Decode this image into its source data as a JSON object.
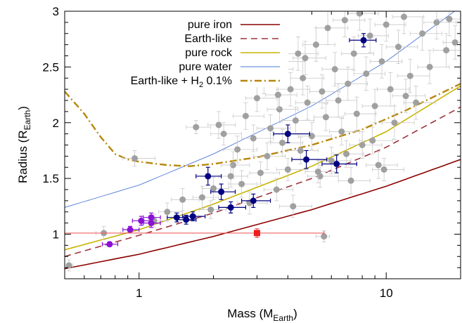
{
  "chart_data": {
    "type": "scatter",
    "xscale": "log",
    "xlim": [
      0.5,
      20
    ],
    "ylim": [
      0.6,
      3.0
    ],
    "xlabel": "Mass (M",
    "xlabel_sub": "Earth",
    "xlabel_close": ")",
    "ylabel": "Radius (R",
    "ylabel_sub": "Earth",
    "ylabel_close": ")",
    "xticks": [
      {
        "value": 1,
        "label": "1"
      },
      {
        "value": 10,
        "label": "10"
      }
    ],
    "yticks": [
      {
        "value": 1,
        "label": "1"
      },
      {
        "value": 1.5,
        "label": "1.5"
      },
      {
        "value": 2,
        "label": "2"
      },
      {
        "value": 2.5,
        "label": "2.5"
      },
      {
        "value": 3,
        "label": "3"
      }
    ],
    "legend_position": "top-left",
    "models": [
      {
        "name": "pure iron",
        "color": "#8b0000",
        "dash": "solid",
        "points": [
          [
            0.5,
            0.69
          ],
          [
            1,
            0.82
          ],
          [
            2,
            0.98
          ],
          [
            5,
            1.22
          ],
          [
            10,
            1.43
          ],
          [
            20,
            1.67
          ]
        ]
      },
      {
        "name": "Earth-like",
        "color": "#a0303a",
        "dash": "dash",
        "points": [
          [
            0.5,
            0.8
          ],
          [
            1,
            0.99
          ],
          [
            2,
            1.19
          ],
          [
            5,
            1.5
          ],
          [
            10,
            1.78
          ],
          [
            20,
            2.14
          ]
        ]
      },
      {
        "name": "pure rock",
        "color": "#c8b400",
        "dash": "solid",
        "points": [
          [
            0.5,
            0.86
          ],
          [
            1,
            1.04
          ],
          [
            2,
            1.27
          ],
          [
            5,
            1.61
          ],
          [
            10,
            1.92
          ],
          [
            20,
            2.33
          ]
        ]
      },
      {
        "name": "pure water",
        "color": "#4a78d8",
        "dash": "solid",
        "points": [
          [
            0.5,
            1.24
          ],
          [
            1,
            1.44
          ],
          [
            2,
            1.72
          ],
          [
            5,
            2.15
          ],
          [
            10,
            2.55
          ],
          [
            20,
            3.04
          ]
        ]
      },
      {
        "name_prefix": "Earth-like + H",
        "name_sub": "2",
        "name_suffix": " 0.1%",
        "color": "#b8860b",
        "dash": "dashdot",
        "points": [
          [
            0.5,
            2.28
          ],
          [
            0.6,
            2.08
          ],
          [
            0.7,
            1.87
          ],
          [
            0.8,
            1.72
          ],
          [
            0.9,
            1.67
          ],
          [
            1.0,
            1.65
          ],
          [
            1.3,
            1.62
          ],
          [
            1.6,
            1.61
          ],
          [
            2.0,
            1.63
          ],
          [
            3.0,
            1.69
          ],
          [
            5.0,
            1.8
          ],
          [
            8.0,
            1.94
          ],
          [
            12,
            2.11
          ],
          [
            20,
            2.35
          ]
        ]
      }
    ],
    "series": [
      {
        "name": "",
        "color": "#a0a0a0",
        "errcolor": "#c8c8c8",
        "points": [
          [
            0.52,
            0.72,
            0.02,
            0.02,
            0.05
          ],
          [
            0.72,
            1.01,
            0.05,
            0.12,
            0.06
          ],
          [
            0.96,
            1.68,
            0.1,
            0.2,
            0.07
          ],
          [
            1.15,
            1.12,
            0.1,
            0.15,
            0.06
          ],
          [
            1.3,
            1.2,
            0.1,
            0.2,
            0.08
          ],
          [
            1.5,
            1.31,
            0.15,
            0.25,
            0.1
          ],
          [
            1.7,
            1.96,
            0.15,
            0.25,
            0.06
          ],
          [
            1.8,
            1.33,
            0.15,
            0.3,
            0.1
          ],
          [
            2.0,
            1.41,
            0.2,
            0.3,
            0.1
          ],
          [
            2.1,
            1.98,
            0.2,
            0.35,
            0.12
          ],
          [
            2.2,
            1.9,
            0.25,
            0.4,
            0.1
          ],
          [
            2.4,
            1.62,
            0.25,
            0.4,
            0.12
          ],
          [
            2.5,
            1.76,
            0.3,
            0.5,
            0.12
          ],
          [
            2.6,
            1.45,
            0.3,
            0.4,
            0.12
          ],
          [
            2.7,
            2.06,
            0.3,
            0.5,
            0.12
          ],
          [
            2.8,
            1.28,
            0.3,
            0.5,
            0.1
          ],
          [
            2.9,
            1.86,
            0.3,
            0.6,
            0.12
          ],
          [
            3.0,
            2.22,
            0.3,
            0.6,
            0.12
          ],
          [
            3.1,
            1.55,
            0.3,
            0.6,
            0.1
          ],
          [
            3.2,
            2.38,
            0.4,
            0.6,
            0.12
          ],
          [
            3.3,
            1.7,
            0.4,
            0.6,
            0.12
          ],
          [
            3.4,
            1.95,
            0.4,
            0.7,
            0.12
          ],
          [
            3.5,
            2.48,
            0.4,
            0.7,
            0.12
          ],
          [
            3.6,
            1.4,
            0.4,
            0.6,
            0.1
          ],
          [
            3.7,
            2.12,
            0.4,
            0.7,
            0.12
          ],
          [
            3.8,
            1.82,
            0.4,
            0.8,
            0.12
          ],
          [
            3.9,
            2.55,
            0.5,
            0.8,
            0.15
          ],
          [
            4.0,
            1.58,
            0.4,
            0.8,
            0.1
          ],
          [
            4.1,
            2.3,
            0.5,
            0.8,
            0.15
          ],
          [
            4.2,
            1.25,
            0.5,
            0.8,
            0.1
          ],
          [
            4.3,
            2.02,
            0.5,
            0.8,
            0.12
          ],
          [
            4.4,
            2.62,
            0.5,
            0.9,
            0.15
          ],
          [
            4.5,
            1.75,
            0.5,
            0.8,
            0.12
          ],
          [
            4.6,
            2.4,
            0.5,
            1.0,
            0.15
          ],
          [
            4.8,
            2.18,
            0.5,
            1.0,
            0.15
          ],
          [
            5.0,
            1.88,
            0.6,
            1.0,
            0.12
          ],
          [
            5.2,
            2.7,
            0.6,
            1.0,
            0.15
          ],
          [
            5.4,
            1.52,
            0.6,
            1.0,
            0.1
          ],
          [
            5.5,
            2.28,
            0.6,
            1.0,
            0.15
          ],
          [
            5.6,
            0.98,
            0.4,
            0.3,
            0.05
          ],
          [
            5.7,
            2.05,
            0.6,
            1.0,
            0.12
          ],
          [
            5.8,
            2.85,
            0.6,
            1.2,
            0.15
          ],
          [
            6.0,
            1.66,
            0.7,
            1.2,
            0.12
          ],
          [
            6.2,
            2.48,
            0.7,
            1.2,
            0.15
          ],
          [
            6.4,
            2.2,
            0.7,
            1.2,
            0.15
          ],
          [
            6.6,
            1.92,
            0.7,
            1.2,
            0.12
          ],
          [
            6.8,
            2.92,
            0.7,
            1.4,
            0.15
          ],
          [
            7.0,
            2.35,
            0.8,
            1.4,
            0.15
          ],
          [
            7.2,
            1.48,
            0.8,
            1.4,
            0.12
          ],
          [
            7.4,
            2.62,
            0.8,
            1.5,
            0.15
          ],
          [
            7.6,
            2.08,
            0.8,
            1.5,
            0.15
          ],
          [
            7.8,
            2.98,
            0.8,
            1.5,
            0.15
          ],
          [
            8.0,
            1.8,
            0.9,
            1.6,
            0.12
          ],
          [
            8.3,
            2.44,
            0.9,
            1.6,
            0.15
          ],
          [
            8.6,
            2.78,
            0.9,
            1.6,
            0.15
          ],
          [
            9.0,
            2.15,
            1.0,
            1.8,
            0.15
          ],
          [
            9.3,
            1.62,
            1.0,
            1.8,
            0.12
          ],
          [
            9.6,
            2.55,
            1.0,
            2.0,
            0.15
          ],
          [
            10.0,
            2.88,
            1.0,
            2.0,
            0.15
          ],
          [
            10.4,
            2.3,
            1.2,
            2.0,
            0.15
          ],
          [
            10.8,
            2.0,
            1.2,
            2.2,
            0.15
          ],
          [
            11.2,
            2.68,
            1.2,
            2.2,
            0.15
          ],
          [
            11.8,
            2.95,
            1.2,
            2.4,
            0.15
          ],
          [
            12.5,
            2.42,
            1.4,
            2.5,
            0.15
          ],
          [
            13.2,
            2.18,
            1.4,
            2.6,
            0.15
          ],
          [
            14.0,
            2.8,
            1.5,
            2.8,
            0.15
          ],
          [
            15.0,
            2.5,
            1.6,
            3.0,
            0.15
          ],
          [
            16.0,
            2.9,
            1.8,
            3.2,
            0.15
          ],
          [
            17.5,
            2.65,
            2.0,
            3.5,
            0.15
          ],
          [
            19.0,
            2.72,
            2.0,
            3.8,
            0.15
          ],
          [
            6.9,
            1.72,
            0.8,
            1.2,
            0.12
          ],
          [
            5.3,
            1.56,
            0.6,
            1.0,
            0.1
          ],
          [
            4.7,
            2.58,
            0.5,
            1.0,
            0.15
          ],
          [
            3.65,
            2.25,
            0.4,
            0.7,
            0.12
          ],
          [
            2.35,
            1.52,
            0.25,
            0.4,
            0.1
          ],
          [
            1.95,
            1.22,
            0.2,
            0.3,
            0.08
          ],
          [
            9.8,
            1.58,
            1.0,
            2.0,
            0.1
          ],
          [
            8.8,
            1.84,
            1.0,
            1.8,
            0.12
          ],
          [
            12.0,
            2.24,
            1.4,
            2.4,
            0.15
          ],
          [
            18.0,
            2.93,
            2.0,
            3.5,
            0.15
          ]
        ]
      },
      {
        "name": "",
        "color": "#000080",
        "errcolor": "#000080",
        "points": [
          [
            1.42,
            1.15,
            0.12,
            0.15,
            0.04
          ],
          [
            1.55,
            1.13,
            0.12,
            0.15,
            0.04
          ],
          [
            1.65,
            1.16,
            0.15,
            0.2,
            0.04
          ],
          [
            1.9,
            1.52,
            0.2,
            0.25,
            0.08
          ],
          [
            2.15,
            1.38,
            0.2,
            0.3,
            0.07
          ],
          [
            2.35,
            1.24,
            0.25,
            0.35,
            0.05
          ],
          [
            2.9,
            1.3,
            0.3,
            0.5,
            0.06
          ],
          [
            4.0,
            1.9,
            0.5,
            0.9,
            0.08
          ],
          [
            4.75,
            1.67,
            0.6,
            1.0,
            0.08
          ],
          [
            6.3,
            1.63,
            0.8,
            1.3,
            0.08
          ],
          [
            8.1,
            2.74,
            1.0,
            1.0,
            0.06
          ]
        ]
      },
      {
        "name": "",
        "color": "#8b10d8",
        "errcolor": "#8b10d8",
        "points": [
          [
            0.76,
            0.91,
            0.05,
            0.06,
            0.02
          ],
          [
            0.92,
            1.04,
            0.06,
            0.08,
            0.03
          ],
          [
            1.02,
            1.12,
            0.08,
            0.1,
            0.04
          ],
          [
            1.12,
            1.15,
            0.08,
            0.1,
            0.04
          ],
          [
            1.12,
            1.1,
            0.08,
            0.1,
            0.04
          ]
        ]
      },
      {
        "name": "",
        "color": "#ee1c1c",
        "errcolor": "#ee6060",
        "marker": "square",
        "points": [
          [
            3.0,
            1.01,
            2.5,
            2.6,
            0.04
          ]
        ]
      }
    ]
  }
}
